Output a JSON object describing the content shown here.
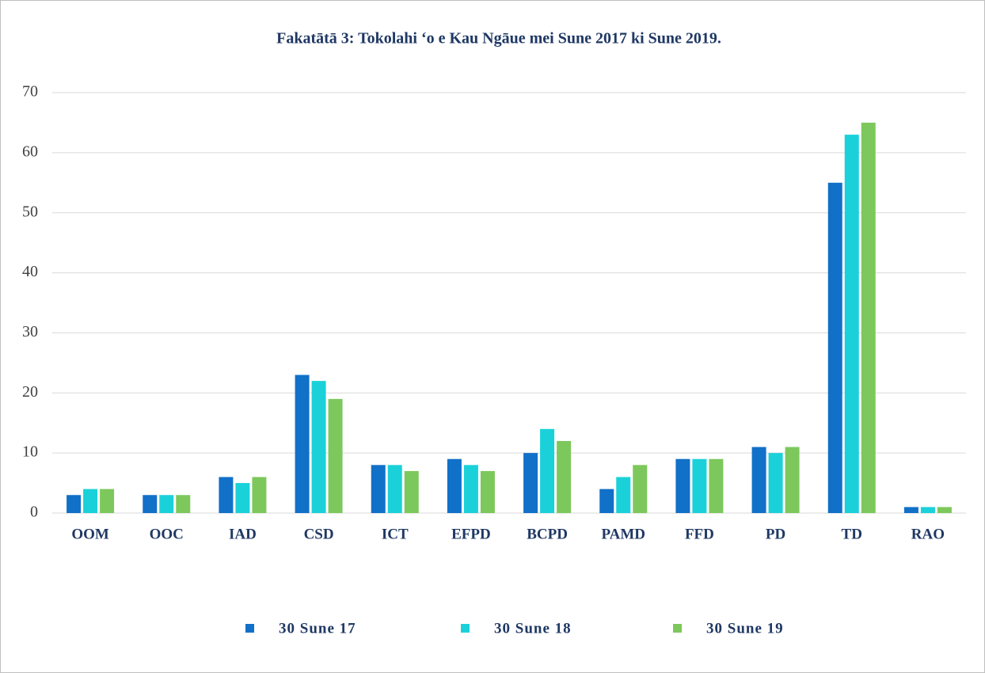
{
  "chart_data": {
    "type": "bar",
    "title": "Fakatātā 3: Tokolahi ‘o e Kau Ngāue mei Sune 2017 ki Sune 2019.",
    "categories": [
      "OOM",
      "OOC",
      "IAD",
      "CSD",
      "ICT",
      "EFPD",
      "BCPD",
      "PAMD",
      "FFD",
      "PD",
      "TD",
      "RAO"
    ],
    "series": [
      {
        "name": "30 Sune 17",
        "color": "#1170c8",
        "values": [
          3,
          3,
          6,
          23,
          8,
          9,
          10,
          4,
          9,
          11,
          55,
          1
        ]
      },
      {
        "name": "30 Sune 18",
        "color": "#1ad1d9",
        "values": [
          4,
          3,
          5,
          22,
          8,
          8,
          14,
          6,
          9,
          10,
          63,
          1
        ]
      },
      {
        "name": "30 Sune 19",
        "color": "#7dc85c",
        "values": [
          4,
          3,
          6,
          19,
          7,
          7,
          12,
          8,
          9,
          11,
          65,
          1
        ]
      }
    ],
    "ylim": [
      0,
      70
    ],
    "yticks": [
      0,
      10,
      20,
      30,
      40,
      50,
      60,
      70
    ],
    "grid": true,
    "legend": "bottom"
  }
}
